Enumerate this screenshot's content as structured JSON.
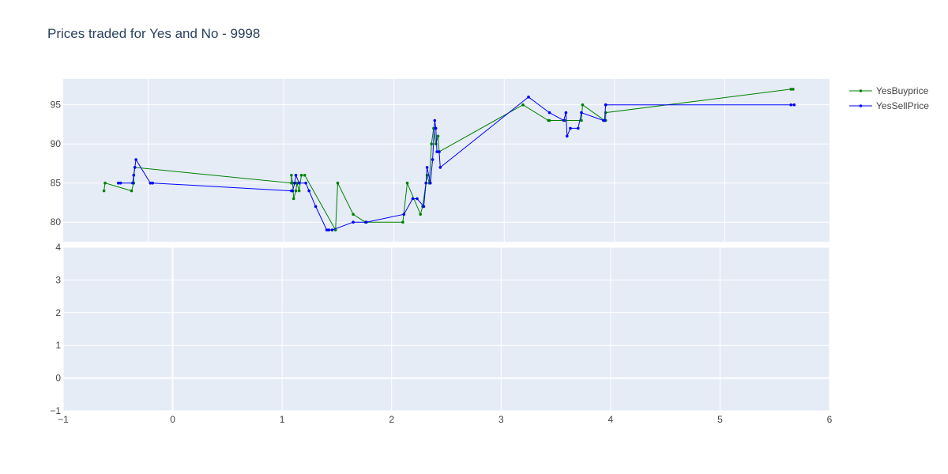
{
  "title": "Prices traded for Yes and No - 9998",
  "colors": {
    "plot_background": "#E5ECF6",
    "grid": "#FFFFFF",
    "text": "#444444",
    "title": "#2A3F5F"
  },
  "chart_data": [
    {
      "type": "line",
      "legend_position": "top-right",
      "xlim": [
        -1.0,
        5.95
      ],
      "ylim": [
        77.5,
        98.3
      ],
      "y_ticks": [
        80,
        85,
        90,
        95
      ],
      "x_grid": [
        -0.23,
        1.0,
        2.0,
        3.0,
        4.0,
        5.0
      ],
      "grid": true,
      "series": [
        {
          "name": "YesBuyprice",
          "color": "#008000",
          "x": [
            -0.63,
            -0.62,
            -0.38,
            -0.36,
            -0.36,
            -0.35,
            1.07,
            1.07,
            1.08,
            1.09,
            1.11,
            1.12,
            1.14,
            1.16,
            1.19,
            1.47,
            1.49,
            1.63,
            1.74,
            2.08,
            2.12,
            2.24,
            2.26,
            2.3,
            2.32,
            2.34,
            2.36,
            2.38,
            2.4,
            2.41,
            3.17,
            3.4,
            3.41,
            3.55,
            3.7,
            3.71,
            3.91,
            3.92,
            3.92,
            5.6,
            5.62
          ],
          "y": [
            84,
            85,
            84,
            85,
            86,
            87,
            85,
            86,
            85,
            83,
            84,
            85,
            84,
            86,
            86,
            79,
            85,
            81,
            80,
            80,
            85,
            81,
            82,
            86,
            85,
            90,
            92,
            90,
            91,
            89,
            95,
            93,
            93,
            93,
            93,
            95,
            93,
            93,
            94,
            97,
            97
          ]
        },
        {
          "name": "YesSellPrice",
          "color": "#0000FF",
          "x": [
            -0.5,
            -0.48,
            -0.37,
            -0.36,
            -0.35,
            -0.34,
            -0.21,
            -0.19,
            1.07,
            1.08,
            1.1,
            1.11,
            1.14,
            1.2,
            1.23,
            1.29,
            1.39,
            1.41,
            1.44,
            1.63,
            1.75,
            2.09,
            2.17,
            2.21,
            2.27,
            2.29,
            2.3,
            2.33,
            2.35,
            2.37,
            2.38,
            2.39,
            2.41,
            2.42,
            3.22,
            3.41,
            3.54,
            3.56,
            3.57,
            3.6,
            3.67,
            3.7,
            3.9,
            3.91,
            3.92,
            3.92,
            5.6,
            5.63
          ],
          "y": [
            85,
            85,
            85,
            86,
            87,
            88,
            85,
            85,
            84,
            84,
            85,
            86,
            85,
            85,
            84,
            82,
            79,
            79,
            79,
            80,
            80,
            81,
            83,
            83,
            82,
            85,
            87,
            85,
            88,
            93,
            92,
            89,
            89,
            87,
            96,
            94,
            93,
            94,
            91,
            92,
            92,
            94,
            93,
            93,
            95,
            95,
            95,
            95
          ]
        }
      ]
    },
    {
      "type": "line",
      "xlim": [
        -1,
        6
      ],
      "ylim": [
        -1,
        4
      ],
      "x_ticks": [
        -1,
        0,
        1,
        2,
        3,
        4,
        5,
        6
      ],
      "y_ticks": [
        -1,
        0,
        1,
        2,
        3,
        4
      ],
      "zero_lines": true,
      "grid": true,
      "series": []
    }
  ]
}
